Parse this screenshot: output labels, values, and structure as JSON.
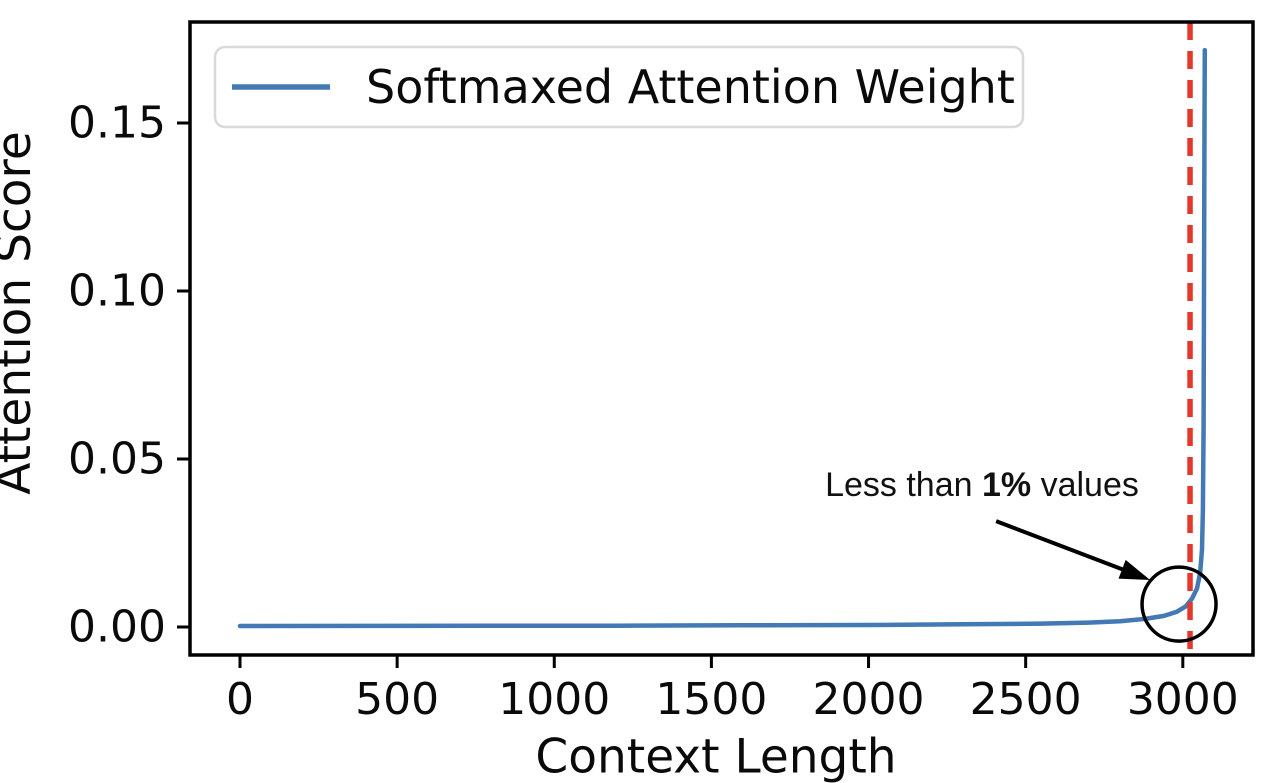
{
  "chart_data": {
    "type": "line",
    "title": "",
    "xlabel": "Context Length",
    "ylabel": "Attention Score",
    "xlim": [
      -154,
      3226
    ],
    "ylim": [
      -0.0087,
      0.18
    ],
    "grid": false,
    "xticks": {
      "values": [
        0,
        500,
        1000,
        1500,
        2000,
        2500,
        3000
      ],
      "labels": [
        "0",
        "500",
        "1000",
        "1500",
        "2000",
        "2500",
        "3000"
      ]
    },
    "yticks": {
      "values": [
        0.0,
        0.05,
        0.1,
        0.15
      ],
      "labels": [
        "0.00",
        "0.05",
        "0.10",
        "0.15"
      ]
    },
    "legend": {
      "position": "upper left",
      "label": "Softmaxed Attention Weight"
    },
    "series": [
      {
        "name": "Softmaxed Attention Weight",
        "color": "#4379b4",
        "points": [
          [
            0,
            0.0003
          ],
          [
            400,
            0.00032
          ],
          [
            800,
            0.00036
          ],
          [
            1200,
            0.0004
          ],
          [
            1600,
            0.0005
          ],
          [
            2000,
            0.0006
          ],
          [
            2300,
            0.0008
          ],
          [
            2550,
            0.001
          ],
          [
            2700,
            0.0013
          ],
          [
            2800,
            0.0017
          ],
          [
            2880,
            0.0024
          ],
          [
            2940,
            0.0033
          ],
          [
            2980,
            0.0045
          ],
          [
            3010,
            0.0062
          ],
          [
            3030,
            0.0085
          ],
          [
            3045,
            0.0115
          ],
          [
            3055,
            0.016
          ],
          [
            3061,
            0.023
          ],
          [
            3064,
            0.035
          ],
          [
            3066,
            0.06
          ],
          [
            3067,
            0.09
          ],
          [
            3068,
            0.12
          ],
          [
            3069,
            0.15
          ],
          [
            3070,
            0.1717
          ]
        ]
      }
    ],
    "vline": {
      "x": 3023,
      "color": "#e5382c",
      "style": "dashed"
    },
    "annotation": {
      "text_prefix": "Less than ",
      "text_bold": "1%",
      "text_suffix": " values",
      "text_xy": [
        2361,
        0.0426
      ],
      "arrow_start": [
        2406,
        0.0315
      ],
      "arrow_tip": [
        2896,
        0.014
      ],
      "circle_center": [
        2988,
        0.0068
      ],
      "circle_radius_px": 37
    }
  },
  "colors": {
    "line": "#4379b4",
    "vline": "#e5382c",
    "axis": "#000000",
    "legend_border": "#d9d9d9"
  }
}
